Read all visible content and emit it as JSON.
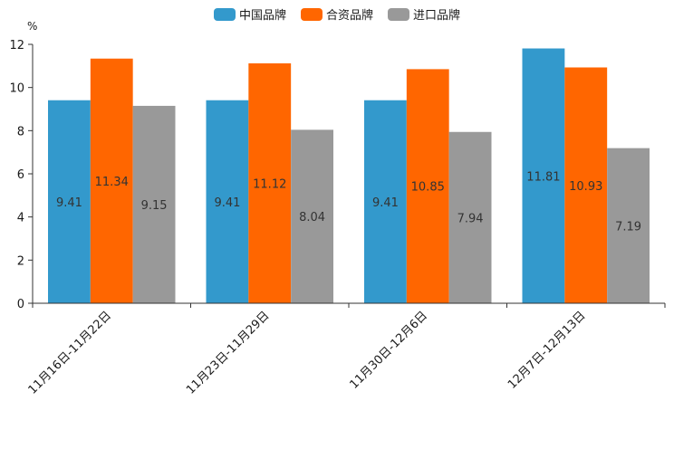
{
  "chart_data": {
    "type": "bar",
    "title": "",
    "xlabel": "",
    "ylabel": "%",
    "ylim": [
      0,
      12
    ],
    "yticks": [
      0,
      2,
      4,
      6,
      8,
      10,
      12
    ],
    "grid": false,
    "legend_position": "top-center",
    "categories": [
      "11月16日-11月22日",
      "11月23日-11月29日",
      "11月30日-12月6日",
      "12月7日-12月13日"
    ],
    "series": [
      {
        "name": "中国品牌",
        "color": "#3399cc",
        "values": [
          9.41,
          9.41,
          9.41,
          11.81
        ],
        "labels": [
          "9.41",
          "9.41",
          "9.41",
          "11.81"
        ]
      },
      {
        "name": "合资品牌",
        "color": "#ff6600",
        "values": [
          11.34,
          11.12,
          10.85,
          10.93
        ],
        "labels": [
          "11.34",
          "11.12",
          "10.85",
          "10.93"
        ]
      },
      {
        "name": "进口品牌",
        "color": "#999999",
        "values": [
          9.15,
          8.04,
          7.94,
          7.19
        ],
        "labels": [
          "9.15",
          "8.04",
          "7.94",
          "7.19"
        ]
      }
    ]
  }
}
